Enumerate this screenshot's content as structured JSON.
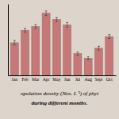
{
  "chart_data": {
    "type": "bar",
    "categories": [
      "Jan",
      "Feb",
      "Mar",
      "Apr",
      "May",
      "Jun",
      "Jul",
      "Aug",
      "Sept",
      "Oct"
    ],
    "values": [
      42,
      58,
      63,
      80,
      72,
      65,
      28,
      22,
      35,
      50
    ],
    "errors": [
      3,
      2.5,
      2.5,
      3,
      2.5,
      3,
      2,
      2,
      2.5,
      2.5
    ],
    "color": "#c47878",
    "ylim": [
      0,
      92
    ],
    "yticks": [],
    "grid": false,
    "tick_labels": "x",
    "annotations": [
      "opulation density (Nos. L⁻¹) of phyt",
      "during different months."
    ]
  }
}
